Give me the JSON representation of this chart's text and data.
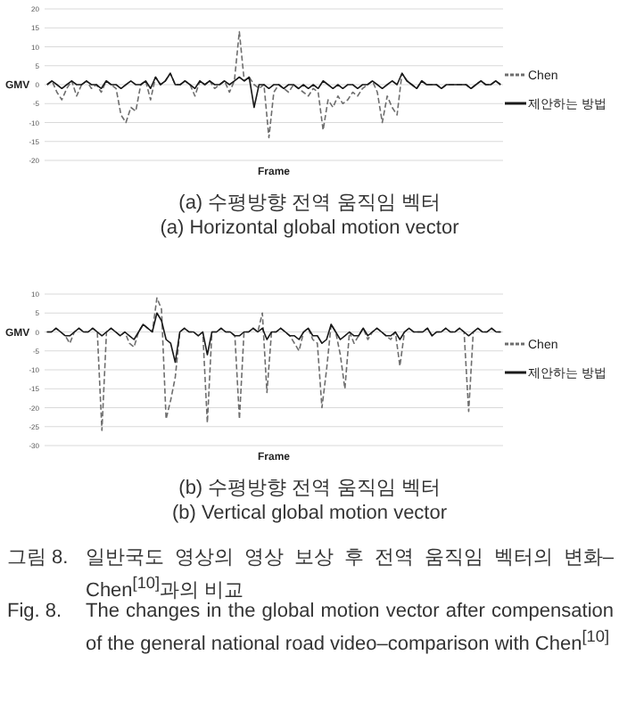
{
  "chart_data": [
    {
      "type": "line",
      "xlabel": "Frame",
      "ylabel": "GMV",
      "ylim": [
        -20,
        20
      ],
      "yticks": [
        -20,
        -15,
        -10,
        -5,
        0,
        5,
        10,
        15,
        20
      ],
      "grid": "y",
      "legend": "right",
      "marker": "none",
      "categories": [
        null,
        null,
        null,
        null,
        null,
        null,
        null,
        null,
        null,
        null,
        null,
        null,
        null,
        null,
        null,
        null,
        null,
        null,
        null,
        null,
        null,
        null,
        null,
        null,
        null,
        null,
        null,
        null,
        null,
        null,
        null,
        null,
        null,
        null,
        null,
        null,
        null,
        null,
        null,
        null,
        null,
        null,
        null,
        null,
        null,
        null,
        null,
        null,
        null,
        null,
        null,
        null,
        null,
        null,
        null,
        null,
        null,
        null,
        null,
        null,
        null,
        null,
        null,
        null,
        null,
        null,
        null,
        null,
        null,
        null,
        null,
        null,
        null,
        null,
        null,
        null,
        null,
        null,
        null,
        null,
        null,
        null,
        null,
        null,
        null,
        null,
        null,
        null,
        null,
        null,
        null,
        null,
        null
      ],
      "series": [
        {
          "name": "Chen",
          "color": "#6e6e6e",
          "line_style": "dashed",
          "values": [
            0,
            1,
            -2,
            -4,
            -1,
            1,
            -3,
            0,
            1,
            -1,
            0,
            -2,
            1,
            0,
            -1,
            -8,
            -10,
            -6,
            -7,
            0,
            1,
            -4,
            2,
            0,
            1,
            3,
            0,
            0,
            1,
            0,
            -3,
            1,
            0,
            1,
            -1,
            0,
            1,
            -2,
            1,
            14,
            1,
            2,
            0,
            -1,
            0,
            -14,
            -2,
            0,
            -1,
            -2,
            0,
            -1,
            -2,
            -3,
            -1,
            -2,
            -12,
            -4,
            -6,
            -3,
            -5,
            -4,
            -2,
            -3,
            -1,
            0,
            1,
            -2,
            -10,
            -3,
            -6,
            -8,
            3,
            1,
            0,
            -1,
            1,
            0,
            0,
            0,
            -1,
            0,
            0,
            0,
            0,
            0,
            -1,
            0,
            1,
            0,
            0,
            1,
            0
          ]
        },
        {
          "name": "제안하는 방법",
          "color": "#1a1a1a",
          "line_style": "solid",
          "values": [
            0,
            1,
            0,
            -1,
            0,
            1,
            0,
            0,
            1,
            0,
            0,
            -1,
            1,
            0,
            0,
            -1,
            0,
            1,
            0,
            0,
            1,
            -1,
            2,
            0,
            1,
            3,
            0,
            0,
            1,
            0,
            -1,
            1,
            0,
            1,
            0,
            0,
            1,
            0,
            1,
            2,
            1,
            2,
            -6,
            0,
            0,
            -1,
            0,
            0,
            -1,
            0,
            0,
            -1,
            0,
            -1,
            0,
            -1,
            1,
            0,
            -1,
            0,
            -1,
            0,
            0,
            -1,
            0,
            0,
            1,
            0,
            -1,
            0,
            1,
            0,
            3,
            1,
            0,
            -1,
            1,
            0,
            0,
            0,
            -1,
            0,
            0,
            0,
            0,
            0,
            -1,
            0,
            1,
            0,
            0,
            1,
            0
          ]
        }
      ],
      "annotations": [
        "(a) 수평방향 전역 움직임 벡터",
        "(a) Horizontal global motion vector"
      ]
    },
    {
      "type": "line",
      "xlabel": "Frame",
      "ylabel": "GMV",
      "ylim": [
        -30,
        10
      ],
      "yticks": [
        -30,
        -25,
        -20,
        -15,
        -10,
        -5,
        0,
        5,
        10
      ],
      "grid": "y",
      "legend": "right",
      "marker": "none",
      "categories": [
        null,
        null,
        null,
        null,
        null,
        null,
        null,
        null,
        null,
        null,
        null,
        null,
        null,
        null,
        null,
        null,
        null,
        null,
        null,
        null,
        null,
        null,
        null,
        null,
        null,
        null,
        null,
        null,
        null,
        null,
        null,
        null,
        null,
        null,
        null,
        null,
        null,
        null,
        null,
        null,
        null,
        null,
        null,
        null,
        null,
        null,
        null,
        null,
        null,
        null,
        null,
        null,
        null,
        null,
        null,
        null,
        null,
        null,
        null,
        null,
        null,
        null,
        null,
        null,
        null,
        null,
        null,
        null,
        null,
        null,
        null,
        null,
        null,
        null,
        null,
        null,
        null,
        null,
        null,
        null,
        null,
        null,
        null,
        null,
        null,
        null,
        null,
        null,
        null,
        null,
        null,
        null,
        null,
        null,
        null,
        null,
        null,
        null,
        null,
        null
      ],
      "series": [
        {
          "name": "Chen",
          "color": "#6e6e6e",
          "line_style": "dashed",
          "values": [
            0,
            0,
            1,
            0,
            -1,
            -3,
            0,
            1,
            0,
            0,
            1,
            0,
            -26,
            0,
            1,
            0,
            -1,
            0,
            -3,
            -4,
            0,
            2,
            1,
            0,
            9,
            6,
            -23,
            -18,
            -12,
            0,
            1,
            0,
            0,
            -1,
            0,
            -24,
            0,
            0,
            1,
            0,
            0,
            -1,
            -23,
            0,
            0,
            1,
            0,
            5,
            -16,
            0,
            0,
            1,
            0,
            -1,
            -3,
            -5,
            0,
            1,
            -2,
            -3,
            -20,
            -10,
            2,
            0,
            -6,
            -15,
            0,
            -3,
            -1,
            1,
            -2,
            0,
            1,
            0,
            -1,
            -2,
            0,
            -9,
            0,
            1,
            0,
            0,
            0,
            1,
            -1,
            0,
            0,
            1,
            0,
            0,
            1,
            0,
            -21,
            0,
            1,
            0,
            0,
            1,
            0,
            0
          ]
        },
        {
          "name": "제안하는 방법",
          "color": "#1a1a1a",
          "line_style": "solid",
          "values": [
            0,
            0,
            1,
            0,
            -1,
            -1,
            0,
            1,
            0,
            0,
            1,
            0,
            -1,
            0,
            1,
            0,
            -1,
            0,
            -1,
            -2,
            0,
            2,
            1,
            0,
            5,
            3,
            -2,
            -3,
            -8,
            0,
            1,
            0,
            0,
            -1,
            0,
            -6,
            0,
            0,
            1,
            0,
            0,
            -1,
            -1,
            0,
            0,
            1,
            0,
            1,
            -2,
            0,
            0,
            1,
            0,
            -1,
            -1,
            -2,
            0,
            1,
            -1,
            -1,
            -3,
            -2,
            2,
            0,
            -2,
            -1,
            0,
            -1,
            -1,
            1,
            -1,
            0,
            1,
            0,
            -1,
            -1,
            0,
            -2,
            0,
            1,
            0,
            0,
            0,
            1,
            -1,
            0,
            0,
            1,
            0,
            0,
            1,
            0,
            -1,
            0,
            1,
            0,
            0,
            1,
            0,
            0
          ]
        }
      ],
      "annotations": [
        "(b) 수평방향 전역 움직임 벡터",
        "(b) Vertical global motion vector",
        "그림 8.\t일반국도 영상의 영상 보상 후 전역 움직임 벡터의 변화–Chen$^{[10]}$과의 비교",
        "Fig. 8.\tThe changes in the global motion vector after compensation of the general national road video–comparison with Chen$^{[10]}$"
      ]
    }
  ]
}
